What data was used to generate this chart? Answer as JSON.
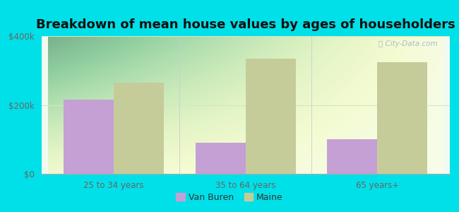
{
  "title": "Breakdown of mean house values by ages of householders",
  "categories": [
    "25 to 34 years",
    "35 to 64 years",
    "65 years+"
  ],
  "van_buren_values": [
    215000,
    90000,
    100000
  ],
  "maine_values": [
    265000,
    335000,
    325000
  ],
  "van_buren_color": "#c4a0d4",
  "maine_color": "#c5cc9a",
  "ylim": [
    0,
    400000
  ],
  "yticks": [
    0,
    200000,
    400000
  ],
  "ytick_labels": [
    "$0",
    "$200k",
    "$400k"
  ],
  "plot_bg_color": "#e8f5e2",
  "outer_background": "#00e0e8",
  "legend_van_buren": "Van Buren",
  "legend_maine": "Maine",
  "title_fontsize": 13,
  "bar_width": 0.38,
  "watermark_text": "City-Data.com",
  "grid_color": "#d0e8c0",
  "tick_color": "#666666",
  "spine_color": "#aaaaaa"
}
